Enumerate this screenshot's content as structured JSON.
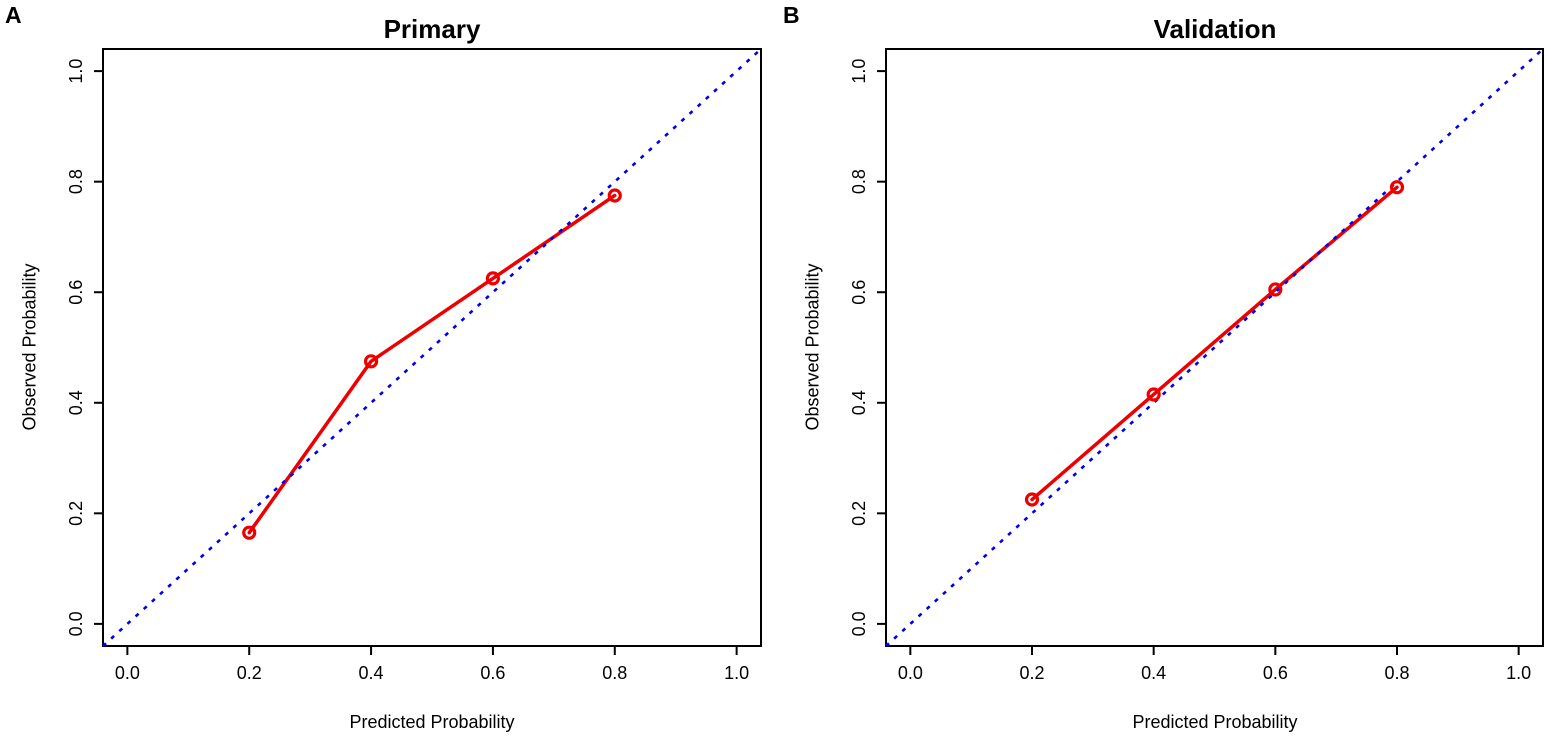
{
  "figure": {
    "background": "#ffffff",
    "axis_color": "#000000"
  },
  "chart_data": [
    {
      "type": "line",
      "panel_letter": "A",
      "title": "Primary",
      "xlabel": "Predicted Probability",
      "ylabel": "Observed Probability",
      "xlim": [
        -0.04,
        1.04
      ],
      "ylim": [
        -0.04,
        1.04
      ],
      "x_tick_labels": [
        "0.0",
        "0.2",
        "0.4",
        "0.6",
        "0.8",
        "1.0"
      ],
      "y_tick_labels": [
        "0.0",
        "0.2",
        "0.4",
        "0.6",
        "0.8",
        "1.0"
      ],
      "grid": false,
      "legend": "none",
      "series": [
        {
          "name": "calibration-curve",
          "style": "solid",
          "marker": "open-circle",
          "color": "#EE0000",
          "x": [
            0.2,
            0.4,
            0.6,
            0.8
          ],
          "y": [
            0.165,
            0.475,
            0.625,
            0.775
          ]
        },
        {
          "name": "ideal-diagonal",
          "style": "dashed",
          "marker": "none",
          "color": "#0000EE",
          "x": [
            -0.04,
            1.04
          ],
          "y": [
            -0.04,
            1.04
          ]
        }
      ]
    },
    {
      "type": "line",
      "panel_letter": "B",
      "title": "Validation",
      "xlabel": "Predicted Probability",
      "ylabel": "Observed Probability",
      "xlim": [
        -0.04,
        1.04
      ],
      "ylim": [
        -0.04,
        1.04
      ],
      "x_tick_labels": [
        "0.0",
        "0.2",
        "0.4",
        "0.6",
        "0.8",
        "1.0"
      ],
      "y_tick_labels": [
        "0.0",
        "0.2",
        "0.4",
        "0.6",
        "0.8",
        "1.0"
      ],
      "grid": false,
      "legend": "none",
      "series": [
        {
          "name": "calibration-curve",
          "style": "solid",
          "marker": "open-circle",
          "color": "#EE0000",
          "x": [
            0.2,
            0.4,
            0.6,
            0.8
          ],
          "y": [
            0.225,
            0.415,
            0.605,
            0.79
          ]
        },
        {
          "name": "ideal-diagonal",
          "style": "dashed",
          "marker": "none",
          "color": "#0000EE",
          "x": [
            -0.04,
            1.04
          ],
          "y": [
            -0.04,
            1.04
          ]
        }
      ]
    }
  ]
}
